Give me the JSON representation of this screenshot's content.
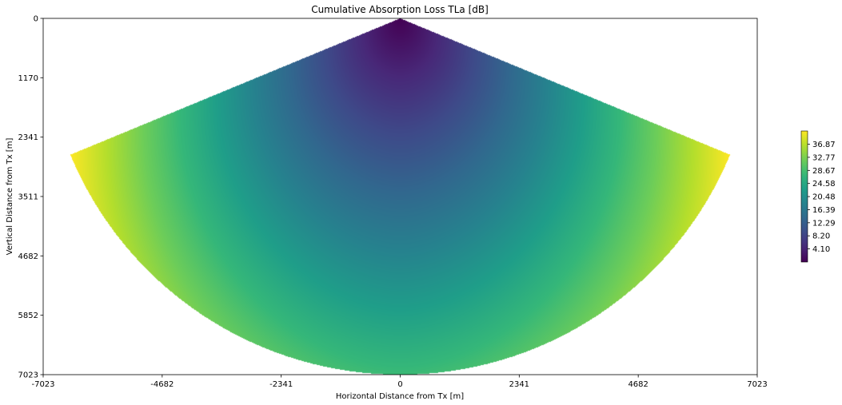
{
  "chart_data": {
    "type": "heatmap",
    "title": "Cumulative Absorption Loss TLa [dB]",
    "xlabel": "Horizontal Distance from Tx [m]",
    "ylabel": "Vertical Distance from Tx [m]",
    "xlim": [
      -7023,
      7023
    ],
    "ylim": [
      0,
      7023
    ],
    "y_inverted": true,
    "x_ticks": [
      "-7023",
      "-4682",
      "-2341",
      "0",
      "2341",
      "4682",
      "7023"
    ],
    "y_ticks": [
      "0",
      "1170",
      "2341",
      "3511",
      "4682",
      "5852",
      "7023"
    ],
    "field": {
      "shape": "circular-sector",
      "apex": [
        0,
        0
      ],
      "radius": 7023,
      "half_angle_deg": 67.5,
      "quantity": "TLa",
      "min_value": 0,
      "max_value": 41.0,
      "note_values": "absorption loss increases with distance from Tx"
    },
    "colorbar": {
      "colormap": "viridis",
      "range": [
        0,
        41.0
      ],
      "tick_labels": [
        "4.10",
        "8.20",
        "12.29",
        "16.39",
        "20.48",
        "24.58",
        "28.67",
        "32.77",
        "36.87"
      ],
      "placement": "right"
    },
    "grid": false
  }
}
